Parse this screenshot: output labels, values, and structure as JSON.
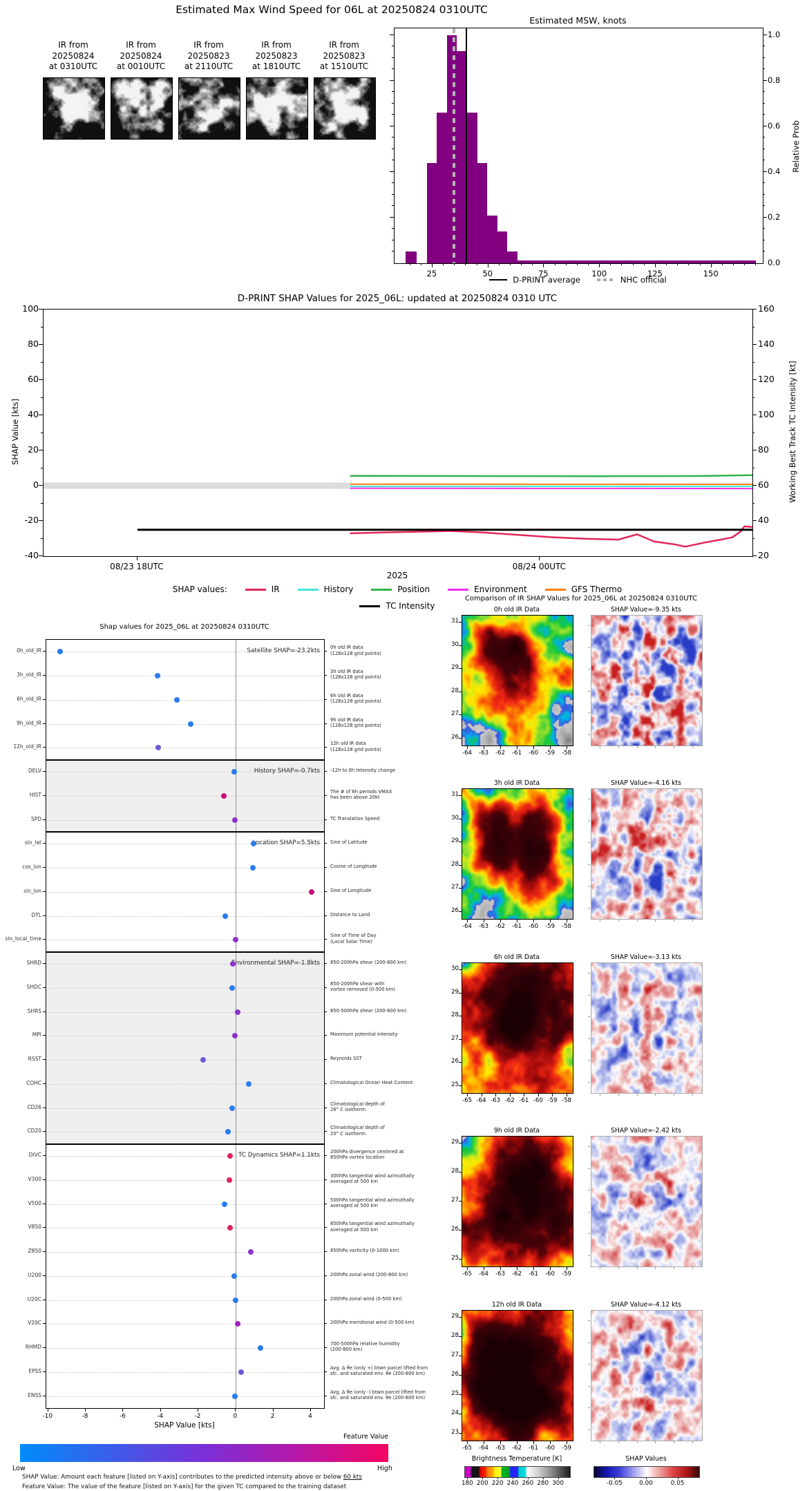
{
  "top": {
    "title": "Estimated Max Wind Speed for 06L at 20250824 0310UTC",
    "ir_thumbs": [
      {
        "caption": "IR from\n20250824\nat 0310UTC"
      },
      {
        "caption": "IR from\n20250824\nat 0010UTC"
      },
      {
        "caption": "IR from\n20250823\nat 2110UTC"
      },
      {
        "caption": "IR from\n20250823\nat 1810UTC"
      },
      {
        "caption": "IR from\n20250823\nat 1510UTC"
      }
    ]
  },
  "chart_data": [
    {
      "id": "msw_histogram",
      "type": "bar",
      "title": "Estimated MSW, knots",
      "ylabel": "Relative Prob",
      "xlim": [
        8,
        173
      ],
      "ylim": [
        0,
        1.03
      ],
      "xticks": [
        25,
        50,
        75,
        100,
        125,
        150
      ],
      "yticks": [
        0.0,
        0.2,
        0.4,
        0.6,
        0.8,
        1.0
      ],
      "bin_edges": [
        13,
        18,
        22.5,
        27,
        31.5,
        36,
        40.5,
        45,
        49.5,
        54,
        58.5,
        63,
        170
      ],
      "values": [
        0.05,
        0.0,
        0.44,
        0.66,
        1.0,
        0.93,
        0.66,
        0.44,
        0.21,
        0.14,
        0.05,
        0.013
      ],
      "bar_color": "#800080",
      "dprint_average_kt": 40,
      "nhc_official_kt": 34.5,
      "legend": [
        "D-PRINT average",
        "NHC official"
      ]
    },
    {
      "id": "shap_timeseries",
      "type": "line",
      "title": "D-PRINT SHAP Values for 2025_06L: updated at 20250824 0310 UTC",
      "ylabel_left": "SHAP Value [kts]",
      "ylabel_right": "Working Best Track TC Intensity [kt]",
      "xlabel": "2025",
      "legend_label": "SHAP values:",
      "ylim_left": [
        -40,
        100
      ],
      "ylim_right": [
        20,
        160
      ],
      "yticks_left": [
        100,
        80,
        60,
        40,
        20,
        0,
        -20,
        -40
      ],
      "yticks_right": [
        160,
        140,
        120,
        100,
        80,
        60,
        40,
        20
      ],
      "x_range_hours": [
        16.6,
        27.17
      ],
      "xticks": [
        {
          "hour": 18,
          "label": "08/23 18UTC"
        },
        {
          "hour": 24,
          "label": "08/24 00UTC"
        }
      ],
      "zero_band": {
        "x_hours": [
          16.6,
          21.17
        ],
        "half_width_kts": 1.8,
        "color": "#dcdcdc"
      },
      "series": [
        {
          "name": "IR",
          "color": "#e3275a",
          "width": 2.5,
          "points": [
            [
              21.17,
              -27.0
            ],
            [
              21.67,
              -26.5
            ],
            [
              22.17,
              -26.1
            ],
            [
              22.67,
              -25.7
            ],
            [
              23.17,
              -26.6
            ],
            [
              23.67,
              -27.9
            ],
            [
              24.17,
              -29.2
            ],
            [
              24.67,
              -30.1
            ],
            [
              25.17,
              -30.6
            ],
            [
              25.45,
              -27.6
            ],
            [
              25.7,
              -31.6
            ],
            [
              26.0,
              -33.2
            ],
            [
              26.17,
              -34.6
            ],
            [
              26.45,
              -32.3
            ],
            [
              26.7,
              -30.6
            ],
            [
              26.87,
              -29.3
            ],
            [
              27.0,
              -25.8
            ],
            [
              27.05,
              -23.1
            ],
            [
              27.17,
              -23.4
            ]
          ]
        },
        {
          "name": "History",
          "color": "#43e8d8",
          "width": 2,
          "points": [
            [
              21.17,
              -0.4
            ],
            [
              27.17,
              -0.4
            ]
          ]
        },
        {
          "name": "Position",
          "color": "#2eb34a",
          "width": 2.5,
          "points": [
            [
              21.17,
              5.6
            ],
            [
              23.0,
              5.5
            ],
            [
              25.0,
              5.4
            ],
            [
              26.3,
              5.5
            ],
            [
              27.17,
              6.0
            ]
          ]
        },
        {
          "name": "Environment",
          "color": "#f02cf0",
          "width": 2,
          "points": [
            [
              21.17,
              -1.4
            ],
            [
              27.17,
              -1.6
            ]
          ]
        },
        {
          "name": "GFS Thermo",
          "color": "#ff7f0e",
          "width": 2,
          "points": [
            [
              21.17,
              0.9
            ],
            [
              27.17,
              0.8
            ]
          ]
        },
        {
          "name": "TC Intensity",
          "color": "#000000",
          "width": 3,
          "points": [
            [
              18.0,
              -25.0
            ],
            [
              27.17,
              -25.0
            ]
          ]
        }
      ]
    },
    {
      "id": "shap_dotplot",
      "type": "scatter",
      "title": "Shap values for 2025_06L at 20250824 0310UTC",
      "xlabel": "SHAP Value [kts]",
      "xlim": [
        -10.1,
        4.7
      ],
      "xticks": [
        -10,
        -8,
        -6,
        -4,
        -2,
        0,
        2,
        4
      ],
      "sections": [
        {
          "name": "Satellite",
          "label": "Satellite SHAP=-23.2kts",
          "rows": [
            0,
            4
          ],
          "bg": "#ffffff"
        },
        {
          "name": "History",
          "label": "History SHAP=-0.7kts",
          "rows": [
            5,
            7
          ],
          "bg": "#efefef"
        },
        {
          "name": "Location",
          "label": "Location SHAP=5.5kts",
          "rows": [
            8,
            12
          ],
          "bg": "#ffffff"
        },
        {
          "name": "Environmental",
          "label": "Environmental SHAP=-1.8kts",
          "rows": [
            13,
            20
          ],
          "bg": "#efefef"
        },
        {
          "name": "TC Dynamics",
          "label": "TC Dynamics SHAP=1.1kts",
          "rows": [
            21,
            31
          ],
          "bg": "#ffffff"
        }
      ],
      "features": [
        {
          "name": "0h_old_IR",
          "value": -9.35,
          "color": "#2b7bf0",
          "desc": "0h old IR data\n(128x128 grid points)"
        },
        {
          "name": "3h_old_IR",
          "value": -4.16,
          "color": "#2b7bf0",
          "desc": "3h old IR data\n(128x128 grid points)"
        },
        {
          "name": "6h_old_IR",
          "value": -3.13,
          "color": "#2b7bf0",
          "desc": "6h old IR data\n(128x128 grid points)"
        },
        {
          "name": "9h_old_IR",
          "value": -2.42,
          "color": "#2b7bf0",
          "desc": "9h old IR data\n(128x128 grid points)"
        },
        {
          "name": "12h_old_IR",
          "value": -4.12,
          "color": "#6b5ad8",
          "desc": "12h old IR data\n(128x128 grid points)"
        },
        {
          "name": "DELV",
          "value": -0.1,
          "color": "#2b7bf0",
          "desc": "-12h to 0h Intensity change"
        },
        {
          "name": "HIST",
          "value": -0.65,
          "color": "#c91277",
          "desc": "The # of 6h periods VMAX\nhas been above 20kt"
        },
        {
          "name": "SPD",
          "value": -0.05,
          "color": "#8c33cc",
          "desc": "TC Translation Speed"
        },
        {
          "name": "sin_lat",
          "value": 0.95,
          "color": "#2b7bf0",
          "desc": "Sine of Latitude"
        },
        {
          "name": "cos_lon",
          "value": 0.9,
          "color": "#2b7bf0",
          "desc": "Cosine of Longitude"
        },
        {
          "name": "sin_lon",
          "value": 4.05,
          "color": "#c91277",
          "desc": "Sine of Longitude"
        },
        {
          "name": "DTL",
          "value": -0.55,
          "color": "#2b7bf0",
          "desc": "Distance to Land"
        },
        {
          "name": "sin_local_time",
          "value": 0.0,
          "color": "#8c33cc",
          "desc": "Sine of Time of Day\n(Local Solar Time)"
        },
        {
          "name": "SHRD",
          "value": -0.15,
          "color": "#8c33cc",
          "desc": "850-200hPa shear (200-800 km)"
        },
        {
          "name": "SHDC",
          "value": -0.2,
          "color": "#2b7bf0",
          "desc": "850-200hPa shear with\nvortex removed (0-500 km)"
        },
        {
          "name": "SHRS",
          "value": 0.1,
          "color": "#8c33cc",
          "desc": "850-500hPa shear (200-800 km)"
        },
        {
          "name": "MPI",
          "value": -0.05,
          "color": "#8c33cc",
          "desc": "Maximum potential intensity"
        },
        {
          "name": "RSST",
          "value": -1.75,
          "color": "#6b5ad8",
          "desc": "Reynolds SST"
        },
        {
          "name": "COHC",
          "value": 0.7,
          "color": "#2b7bf0",
          "desc": "Climatological Ocean Heat Content"
        },
        {
          "name": "CD26",
          "value": -0.2,
          "color": "#2b7bf0",
          "desc": "Climatological depth of\n26° C isotherm"
        },
        {
          "name": "CD20",
          "value": -0.4,
          "color": "#2b7bf0",
          "desc": "Climatological depth of\n20° C isotherm"
        },
        {
          "name": "DIVC",
          "value": -0.3,
          "color": "#e0245e",
          "desc": "200hPa divergence centered at\n850hPa vortex location"
        },
        {
          "name": "V300",
          "value": -0.35,
          "color": "#e0245e",
          "desc": "300hPa tangential wind azimuthally\naveraged at 500 km"
        },
        {
          "name": "V500",
          "value": -0.6,
          "color": "#2b7bf0",
          "desc": "500hPa tangential wind azimuthally\naveraged at 500 km"
        },
        {
          "name": "V850",
          "value": -0.3,
          "color": "#e0245e",
          "desc": "850hPa tangential wind azimuthally\naveraged at 500 km"
        },
        {
          "name": "Z850",
          "value": 0.8,
          "color": "#8c33cc",
          "desc": "850hPa vorticity (0-1000 km)"
        },
        {
          "name": "U200",
          "value": -0.1,
          "color": "#2b7bf0",
          "desc": "200hPa zonal wind (200-800 km)"
        },
        {
          "name": "U20C",
          "value": 0.0,
          "color": "#2b7bf0",
          "desc": "200hPa zonal wind (0-500 km)"
        },
        {
          "name": "V20C",
          "value": 0.1,
          "color": "#a21fc0",
          "desc": "200hPa meridional wind (0-500 km)"
        },
        {
          "name": "RHMD",
          "value": 1.3,
          "color": "#2b7bf0",
          "desc": "700-500hPa relative humidity\n(200-800 km)"
        },
        {
          "name": "EPSS",
          "value": 0.3,
          "color": "#6b5ad8",
          "desc": "Avg. Δ θe (only +) btwn parcel lifted from\nsfc. and saturated env. θe (200-800 km)"
        },
        {
          "name": "ENSS",
          "value": -0.05,
          "color": "#2b7bf0",
          "desc": "Avg. Δ θe (only -) btwn parcel lifted from\nsfc. and saturated env. θe (200-800 km)"
        }
      ],
      "colorbar": {
        "title": "Feature Value",
        "low": "Low",
        "high": "High",
        "gradient": [
          "#008cfb",
          "#3c5ce8",
          "#7b2fd8",
          "#b517a8",
          "#f30561"
        ]
      },
      "caption_line1_pre": "SHAP Value: Amount each feature [listed on Y-axis] contributes to the predicted intensity above or below ",
      "caption_line1_underlined": "60 kts",
      "caption_line2": "Feature Value: The value of the feature [listed on Y-axis] for the given TC compared to the training dataset"
    },
    {
      "id": "ir_comparison",
      "type": "heatmap",
      "title": "Comparison of IR SHAP Values for 2025_06L at 20250824 0310UTC",
      "rows": [
        {
          "ir_title": "0h old IR Data",
          "shap_title": "SHAP Value=-9.35 kts",
          "lat_ticks": [
            31,
            30,
            29,
            28,
            27,
            26
          ],
          "lon_ticks": [
            -64,
            -63,
            -62,
            -61,
            -60,
            -59,
            -58
          ]
        },
        {
          "ir_title": "3h old IR Data",
          "shap_title": "SHAP Value=-4.16 kts",
          "lat_ticks": [
            31,
            30,
            29,
            28,
            27,
            26
          ],
          "lon_ticks": [
            -64,
            -63,
            -62,
            -61,
            -60,
            -59,
            -58
          ]
        },
        {
          "ir_title": "6h old IR Data",
          "shap_title": "SHAP Value=-3.13 kts",
          "lat_ticks": [
            30,
            29,
            28,
            27,
            26,
            25
          ],
          "lon_ticks": [
            -65,
            -64,
            -63,
            -62,
            -61,
            -60,
            -59,
            -58
          ]
        },
        {
          "ir_title": "9h old IR Data",
          "shap_title": "SHAP Value=-2.42 kts",
          "lat_ticks": [
            29,
            28,
            27,
            26,
            25
          ],
          "lon_ticks": [
            -65,
            -64,
            -63,
            -62,
            -61,
            -60,
            -59
          ]
        },
        {
          "ir_title": "12h old IR Data",
          "shap_title": "SHAP Value=-4.12 kts",
          "lat_ticks": [
            29,
            28,
            27,
            26,
            25,
            24,
            23
          ],
          "lon_ticks": [
            -65,
            -64,
            -63,
            -62,
            -61,
            -60,
            -59
          ]
        }
      ],
      "colorbars": {
        "bt": {
          "title": "Brightness Temperature [K]",
          "ticks": [
            180,
            200,
            220,
            240,
            260,
            280,
            300
          ]
        },
        "shap": {
          "title": "SHAP Values",
          "ticks": [
            "-0.05",
            "0.00",
            "0.05"
          ]
        }
      }
    }
  ]
}
